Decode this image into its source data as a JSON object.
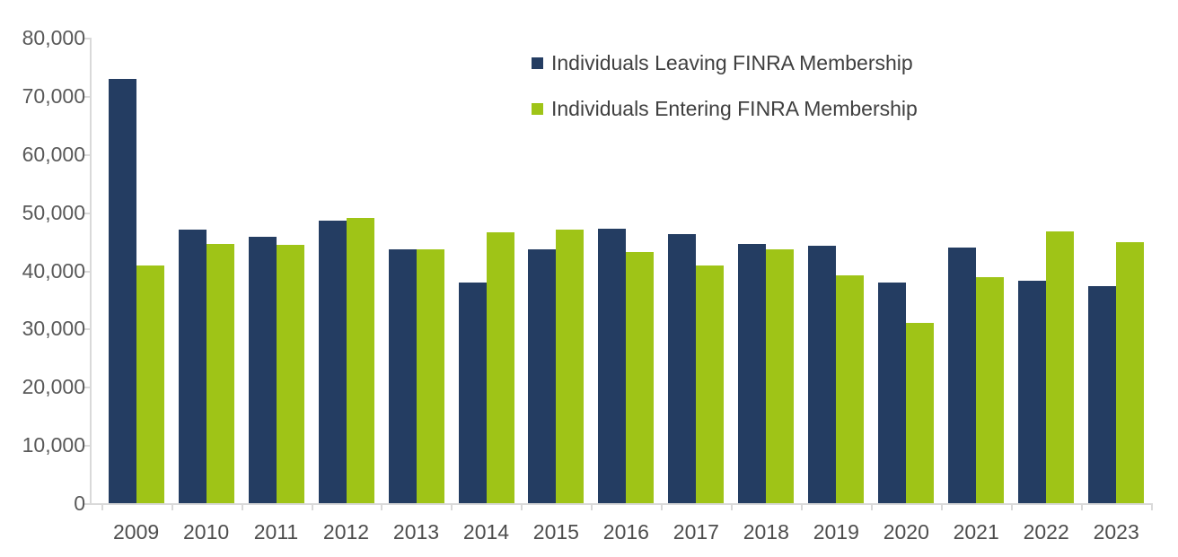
{
  "chart_data": {
    "type": "bar",
    "title": "",
    "categories": [
      "2009",
      "2010",
      "2011",
      "2012",
      "2013",
      "2014",
      "2015",
      "2016",
      "2017",
      "2018",
      "2019",
      "2020",
      "2021",
      "2022",
      "2023"
    ],
    "series": [
      {
        "key": "leaving",
        "name": "Individuals Leaving FINRA Membership",
        "color": "#243D62",
        "values": [
          72900,
          47000,
          45800,
          48500,
          43600,
          37900,
          43700,
          47100,
          46200,
          44500,
          44200,
          38000,
          43900,
          38300,
          37300
        ]
      },
      {
        "key": "entering",
        "name": "Individuals Entering FINRA Membership",
        "color": "#9FC417",
        "values": [
          40900,
          44500,
          44400,
          49000,
          43600,
          46500,
          47000,
          43100,
          40800,
          43700,
          39100,
          31000,
          38900,
          46700,
          44900
        ]
      }
    ],
    "xlabel": "",
    "ylabel": "",
    "ylim": [
      0,
      80000
    ],
    "ytick_step": 10000,
    "ytick_labels": [
      "0",
      "10,000",
      "20,000",
      "30,000",
      "40,000",
      "50,000",
      "60,000",
      "70,000",
      "80,000"
    ],
    "grid": false,
    "legend_position": "top-center"
  },
  "style": {
    "axis_color": "#D9D9D9",
    "ytick_label_color": "#595959",
    "category_label_color": "#4D4D4D",
    "legend_text_color": "#404040",
    "background": "#FFFFFF"
  }
}
